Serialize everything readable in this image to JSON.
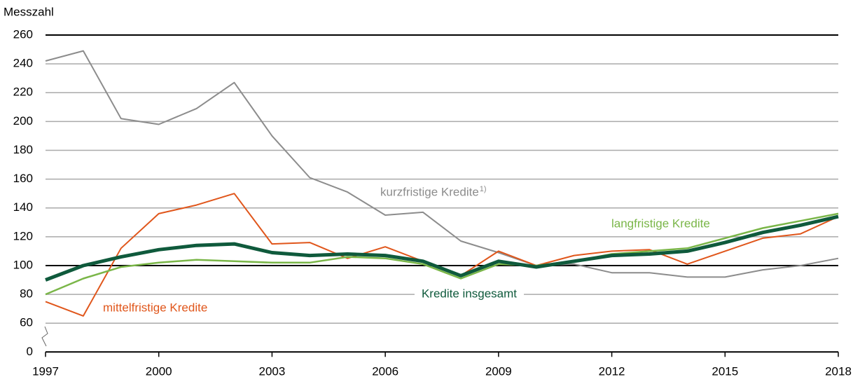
{
  "chart_data": {
    "type": "line",
    "ylabel": "Messzahl",
    "x": [
      1997,
      1998,
      1999,
      2000,
      2001,
      2002,
      2003,
      2004,
      2005,
      2006,
      2007,
      2008,
      2009,
      2010,
      2011,
      2012,
      2013,
      2014,
      2015,
      2016,
      2017,
      2018
    ],
    "xlim": [
      1997,
      2018
    ],
    "xticks": [
      1997,
      2000,
      2003,
      2006,
      2009,
      2012,
      2015,
      2018
    ],
    "ylim": [
      0,
      260
    ],
    "yticks": [
      0,
      60,
      80,
      100,
      120,
      140,
      160,
      180,
      200,
      220,
      240,
      260
    ],
    "ybreak": [
      0,
      60
    ],
    "emphasized_yticks": [
      0,
      100,
      260
    ],
    "grid": true,
    "series": [
      {
        "name": "kurzfristige Kredite",
        "footnote": "1)",
        "color": "#8c8c8c",
        "width": 2,
        "values": [
          242,
          249,
          202,
          198,
          209,
          227,
          190,
          161,
          151,
          135,
          137,
          117,
          109,
          100,
          101,
          95,
          95,
          92,
          92,
          97,
          100,
          105
        ]
      },
      {
        "name": "mittelfristige Kredite",
        "color": "#e0561b",
        "width": 2,
        "values": [
          75,
          65,
          112,
          136,
          142,
          150,
          115,
          116,
          105,
          113,
          103,
          93,
          110,
          100,
          107,
          110,
          111,
          101,
          110,
          119,
          122,
          134
        ]
      },
      {
        "name": "langfristige Kredite",
        "color": "#7ab648",
        "width": 2.5,
        "values": [
          80,
          91,
          99,
          102,
          104,
          103,
          102,
          102,
          106,
          105,
          101,
          91,
          101,
          100,
          103,
          108,
          110,
          112,
          119,
          126,
          131,
          136
        ]
      },
      {
        "name": "Kredite insgesamt",
        "color": "#0f5a3c",
        "width": 5,
        "values": [
          90,
          100,
          106,
          111,
          114,
          115,
          109,
          107,
          108,
          107,
          103,
          93,
          103,
          99,
          103,
          107,
          108,
          110,
          116,
          123,
          128,
          134
        ]
      }
    ]
  }
}
